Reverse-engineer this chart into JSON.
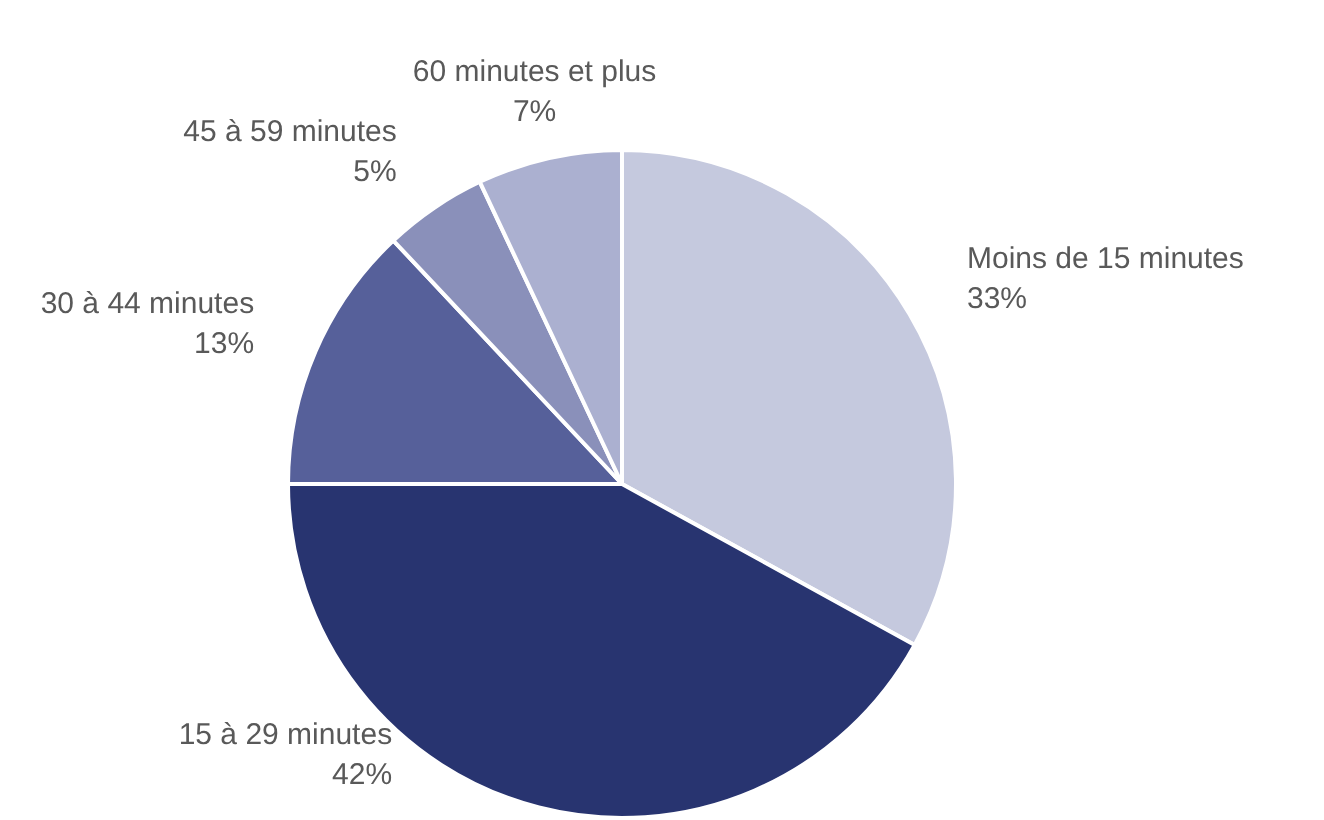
{
  "chart_data": {
    "type": "pie",
    "categories": [
      "Moins de 15 minutes",
      "15 à 29 minutes",
      "30 à 44 minutes",
      "45 à 59 minutes",
      "60 minutes et plus"
    ],
    "values": [
      33,
      42,
      13,
      5,
      7
    ],
    "value_labels": [
      "33%",
      "42%",
      "13%",
      "5%",
      "7%"
    ],
    "colors": [
      "#c5c9de",
      "#283470",
      "#56609a",
      "#8a90ba",
      "#abb0d0"
    ],
    "legend": false
  }
}
